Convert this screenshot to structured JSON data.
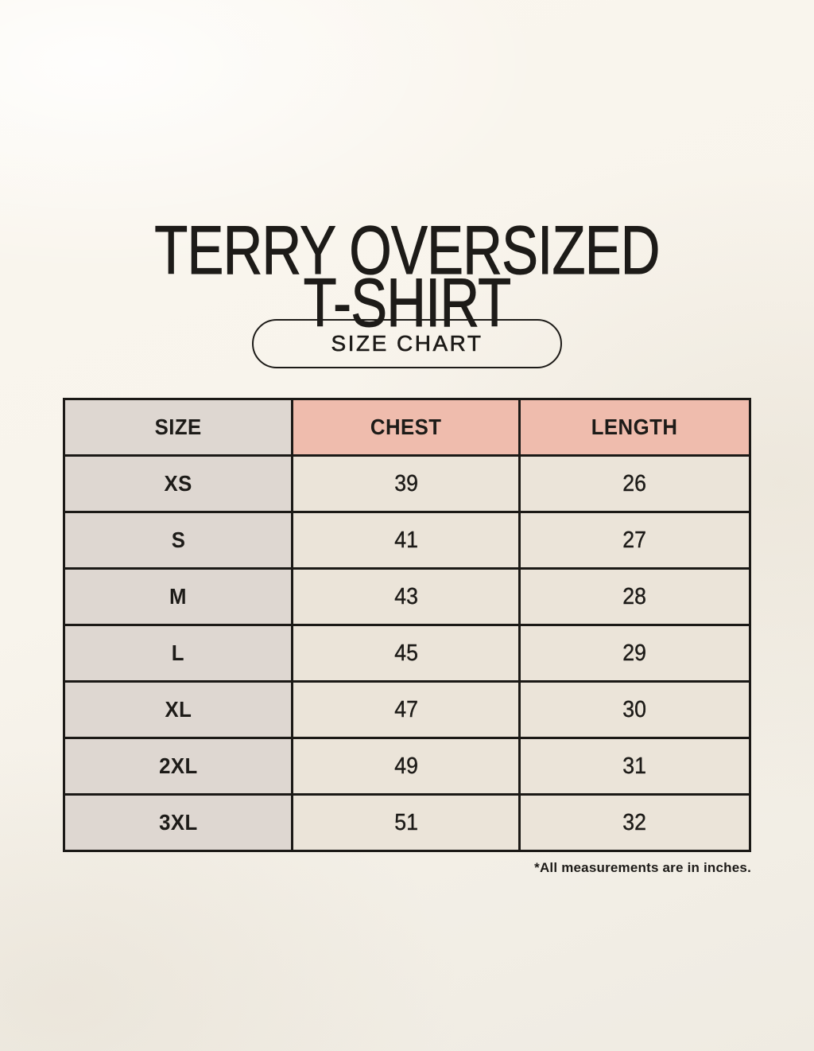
{
  "page": {
    "title": {
      "line1": "TERRY OVERSIZED",
      "line2": "T-SHIRT"
    },
    "size_chart_button": "SIZE CHART",
    "footnote": "*All measurements are in inches."
  },
  "colors": {
    "background": "#f8f4ec",
    "table_border": "#1b1916",
    "size_col_bg": "#ded7d1",
    "header_accent_bg": "#efbcad",
    "data_cell_bg": "#ebe4d9",
    "text": "#1d1b18"
  },
  "chart_data": {
    "type": "table",
    "title": "TERRY OVERSIZED T-SHIRT",
    "subtitle": "SIZE CHART",
    "unit": "inches",
    "columns": [
      "SIZE",
      "CHEST",
      "LENGTH"
    ],
    "rows": [
      {
        "size": "XS",
        "chest": 39,
        "length": 26
      },
      {
        "size": "S",
        "chest": 41,
        "length": 27
      },
      {
        "size": "M",
        "chest": 43,
        "length": 28
      },
      {
        "size": "L",
        "chest": 45,
        "length": 29
      },
      {
        "size": "XL",
        "chest": 47,
        "length": 30
      },
      {
        "size": "2XL",
        "chest": 49,
        "length": 31
      },
      {
        "size": "3XL",
        "chest": 51,
        "length": 32
      }
    ]
  }
}
